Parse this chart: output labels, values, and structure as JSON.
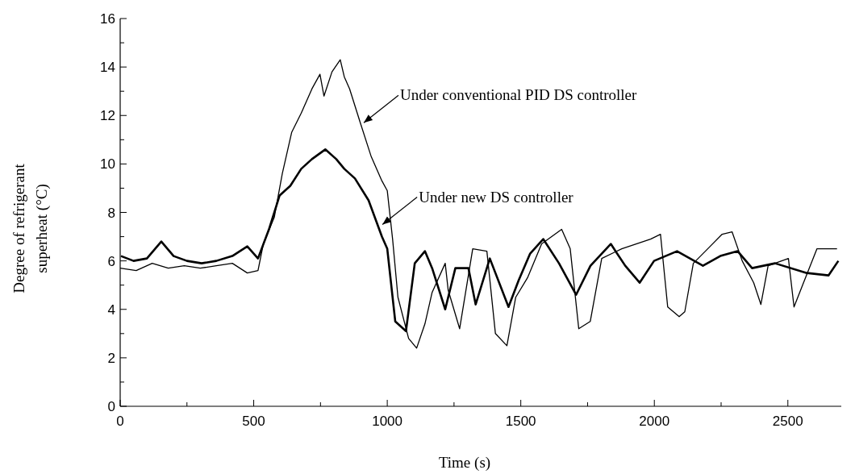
{
  "chart_data": {
    "type": "line",
    "xlabel": "Time (s)",
    "ylabel": "Degree of refrigerant superheat (°C)",
    "xlim": [
      0,
      2700
    ],
    "ylim": [
      0,
      16
    ],
    "xticks": [
      0,
      {
        "value": 250,
        "label": null
      },
      500,
      {
        "value": 750,
        "label": null
      },
      1000,
      {
        "value": 1250,
        "label": null
      },
      1500,
      {
        "value": 1750,
        "label": null
      },
      2000,
      {
        "value": 2250,
        "label": null
      },
      2500
    ],
    "yticks": [
      0,
      {
        "value": 1,
        "label": null
      },
      2,
      {
        "value": 3,
        "label": null
      },
      4,
      {
        "value": 5,
        "label": null
      },
      6,
      {
        "value": 7,
        "label": null
      },
      8,
      {
        "value": 9,
        "label": null
      },
      10,
      {
        "value": 11,
        "label": null
      },
      12,
      {
        "value": 13,
        "label": null
      },
      14,
      {
        "value": 15,
        "label": null
      },
      16
    ],
    "grid": false,
    "line_style": "solid",
    "annotations": [
      {
        "text": "Under conventional PID DS controller",
        "x": 909,
        "y": 11.7
      },
      {
        "text": "Under new DS controller",
        "x": 979,
        "y": 7.5
      }
    ],
    "series": [
      {
        "color": "#000000",
        "x": [
          0,
          60,
          120,
          180,
          240,
          300,
          360,
          420,
          476,
          516,
          536,
          577,
          607,
          642,
          678,
          718,
          748,
          763,
          793,
          824,
          839,
          859,
          899,
          940,
          980,
          1000,
          1020,
          1040,
          1080,
          1110,
          1141,
          1168,
          1217,
          1228,
          1271,
          1320,
          1373,
          1405,
          1448,
          1481,
          1525,
          1578,
          1653,
          1685,
          1717,
          1760,
          1803,
          1878,
          1986,
          2023,
          2050,
          2093,
          2114,
          2146,
          2200,
          2254,
          2291,
          2329,
          2372,
          2399,
          2426,
          2502,
          2523,
          2555,
          2609,
          2684
        ],
        "values": [
          5.7,
          5.6,
          5.9,
          5.7,
          5.8,
          5.7,
          5.8,
          5.9,
          5.5,
          5.6,
          6.7,
          7.8,
          9.6,
          11.3,
          12.1,
          13.1,
          13.7,
          12.8,
          13.8,
          14.3,
          13.6,
          13.1,
          11.7,
          10.3,
          9.3,
          8.9,
          6.9,
          4.5,
          2.8,
          2.4,
          3.4,
          4.7,
          5.9,
          4.8,
          3.2,
          6.5,
          6.4,
          3.0,
          2.5,
          4.5,
          5.3,
          6.7,
          7.3,
          6.5,
          3.2,
          3.5,
          6.1,
          6.5,
          6.9,
          7.1,
          4.1,
          3.7,
          3.9,
          5.9,
          6.5,
          7.1,
          7.2,
          6.0,
          5.1,
          4.2,
          5.8,
          6.1,
          4.1,
          5.0,
          6.5,
          6.5
        ]
      },
      {
        "color": "#000000",
        "x": [
          3,
          50,
          100,
          154,
          200,
          250,
          305,
          360,
          420,
          476,
          516,
          557,
          597,
          637,
          678,
          718,
          768,
          809,
          839,
          879,
          930,
          960,
          980,
          1000,
          1030,
          1070,
          1103,
          1141,
          1168,
          1217,
          1255,
          1304,
          1331,
          1384,
          1454,
          1492,
          1535,
          1584,
          1643,
          1707,
          1761,
          1837,
          1891,
          1945,
          1999,
          2085,
          2182,
          2247,
          2312,
          2366,
          2452,
          2571,
          2652,
          2689
        ],
        "values": [
          6.2,
          6.0,
          6.1,
          6.8,
          6.2,
          6.0,
          5.9,
          6.0,
          6.2,
          6.6,
          6.1,
          7.3,
          8.7,
          9.1,
          9.8,
          10.2,
          10.6,
          10.2,
          9.8,
          9.4,
          8.5,
          7.6,
          7.0,
          6.5,
          3.5,
          3.1,
          5.9,
          6.4,
          5.7,
          4.0,
          5.7,
          5.7,
          4.2,
          6.1,
          4.1,
          5.2,
          6.3,
          6.9,
          5.9,
          4.6,
          5.8,
          6.7,
          5.8,
          5.1,
          6.0,
          6.4,
          5.8,
          6.2,
          6.4,
          5.7,
          5.9,
          5.5,
          5.4,
          6.0
        ]
      }
    ]
  }
}
